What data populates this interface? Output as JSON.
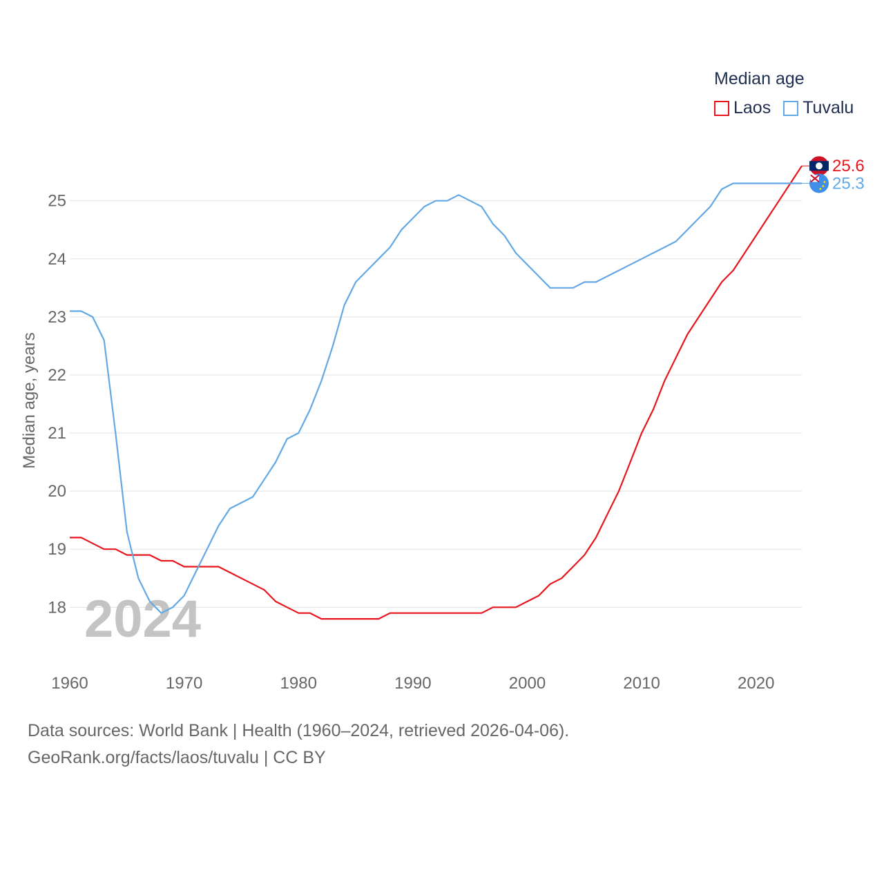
{
  "legend": {
    "title": "Median age",
    "items": [
      {
        "label": "Laos",
        "color": "#e8141c"
      },
      {
        "label": "Tuvalu",
        "color": "#62a8e5"
      }
    ]
  },
  "year_label": "2024",
  "footer": {
    "line1": "Data sources: World Bank | Health (1960–2024, retrieved 2026-04-06).",
    "line2": "GeoRank.org/facts/laos/tuvalu | CC BY"
  },
  "chart_data": {
    "type": "line",
    "ylabel": "Median age, years",
    "xlabel": "",
    "xlim": [
      1960,
      2024
    ],
    "ylim": [
      17.1,
      25.9
    ],
    "x_ticks": [
      1960,
      1970,
      1980,
      1990,
      2000,
      2010,
      2020
    ],
    "y_ticks": [
      18,
      19,
      20,
      21,
      22,
      23,
      24,
      25
    ],
    "grid": true,
    "legend_position": "top-right",
    "x": [
      1960,
      1961,
      1962,
      1963,
      1964,
      1965,
      1966,
      1967,
      1968,
      1969,
      1970,
      1971,
      1972,
      1973,
      1974,
      1975,
      1976,
      1977,
      1978,
      1979,
      1980,
      1981,
      1982,
      1983,
      1984,
      1985,
      1986,
      1987,
      1988,
      1989,
      1990,
      1991,
      1992,
      1993,
      1994,
      1995,
      1996,
      1997,
      1998,
      1999,
      2000,
      2001,
      2002,
      2003,
      2004,
      2005,
      2006,
      2007,
      2008,
      2009,
      2010,
      2011,
      2012,
      2013,
      2014,
      2015,
      2016,
      2017,
      2018,
      2019,
      2020,
      2021,
      2022,
      2023,
      2024
    ],
    "series": [
      {
        "name": "Laos",
        "color": "#e8141c",
        "end_label": "25.6",
        "values": [
          19.2,
          19.2,
          19.1,
          19.0,
          19.0,
          18.9,
          18.9,
          18.9,
          18.8,
          18.8,
          18.7,
          18.7,
          18.7,
          18.7,
          18.6,
          18.5,
          18.4,
          18.3,
          18.1,
          18.0,
          17.9,
          17.9,
          17.8,
          17.8,
          17.8,
          17.8,
          17.8,
          17.8,
          17.9,
          17.9,
          17.9,
          17.9,
          17.9,
          17.9,
          17.9,
          17.9,
          17.9,
          18.0,
          18.0,
          18.0,
          18.1,
          18.2,
          18.4,
          18.5,
          18.7,
          18.9,
          19.2,
          19.6,
          20.0,
          20.5,
          21.0,
          21.4,
          21.9,
          22.3,
          22.7,
          23.0,
          23.3,
          23.6,
          23.8,
          24.1,
          24.4,
          24.7,
          25.0,
          25.3,
          25.6
        ]
      },
      {
        "name": "Tuvalu",
        "color": "#62a8e5",
        "end_label": "25.3",
        "values": [
          23.1,
          23.1,
          23.0,
          22.6,
          21.0,
          19.3,
          18.5,
          18.1,
          17.9,
          18.0,
          18.2,
          18.6,
          19.0,
          19.4,
          19.7,
          19.8,
          19.9,
          20.2,
          20.5,
          20.9,
          21.0,
          21.4,
          21.9,
          22.5,
          23.2,
          23.6,
          23.8,
          24.0,
          24.2,
          24.5,
          24.7,
          24.9,
          25.0,
          25.0,
          25.1,
          25.0,
          24.9,
          24.6,
          24.4,
          24.1,
          23.9,
          23.7,
          23.5,
          23.5,
          23.5,
          23.6,
          23.6,
          23.7,
          23.8,
          23.9,
          24.0,
          24.1,
          24.2,
          24.3,
          24.5,
          24.7,
          24.9,
          25.2,
          25.3,
          25.3,
          25.3,
          25.3,
          25.3,
          25.3,
          25.3
        ]
      }
    ]
  }
}
